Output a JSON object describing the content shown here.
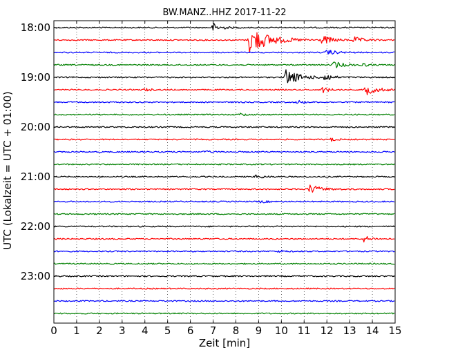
{
  "chart_data": {
    "type": "line",
    "title": "BW.MANZ..HHZ 2017-11-22",
    "xlabel": "Zeit  [min]",
    "ylabel": "UTC (Lokalzeit = UTC + 01:00)",
    "xlim": [
      0,
      15
    ],
    "x_ticks": [
      "0",
      "1",
      "2",
      "3",
      "4",
      "5",
      "6",
      "7",
      "8",
      "9",
      "10",
      "11",
      "12",
      "13",
      "14",
      "15"
    ],
    "y_ticks": [
      "18:00",
      "19:00",
      "20:00",
      "21:00",
      "22:00",
      "23:00"
    ],
    "grid": true,
    "trace_colors": [
      "#000000",
      "#ff0000",
      "#0000ff",
      "#008000"
    ],
    "rows": [
      {
        "start": "18:00",
        "events": [
          {
            "t": 7.0,
            "amp": 0.45,
            "dur": 0.7
          }
        ]
      },
      {
        "start": "18:15",
        "events": [
          {
            "t": 8.6,
            "amp": 1.4,
            "dur": 1.8
          },
          {
            "t": 11.8,
            "amp": 0.45,
            "dur": 0.9
          },
          {
            "t": 13.2,
            "amp": 0.3,
            "dur": 0.8
          }
        ]
      },
      {
        "start": "18:30",
        "events": [
          {
            "t": 12.0,
            "amp": 0.28,
            "dur": 0.8
          }
        ]
      },
      {
        "start": "18:45",
        "events": [
          {
            "t": 12.3,
            "amp": 0.35,
            "dur": 0.9
          },
          {
            "t": 13.5,
            "amp": 0.2,
            "dur": 0.5
          }
        ]
      },
      {
        "start": "19:00",
        "events": [
          {
            "t": 10.2,
            "amp": 0.85,
            "dur": 1.2
          },
          {
            "t": 11.9,
            "amp": 0.45,
            "dur": 0.6
          }
        ]
      },
      {
        "start": "19:15",
        "events": [
          {
            "t": 4.0,
            "amp": 0.15,
            "dur": 0.6
          },
          {
            "t": 11.8,
            "amp": 0.3,
            "dur": 0.6
          },
          {
            "t": 13.7,
            "amp": 0.55,
            "dur": 1.0
          }
        ]
      },
      {
        "start": "19:30",
        "events": [
          {
            "t": 10.7,
            "amp": 0.22,
            "dur": 0.5
          }
        ]
      },
      {
        "start": "19:45",
        "events": [
          {
            "t": 8.2,
            "amp": 0.15,
            "dur": 0.5
          }
        ]
      },
      {
        "start": "20:00",
        "events": []
      },
      {
        "start": "20:15",
        "events": [
          {
            "t": 12.2,
            "amp": 0.15,
            "dur": 0.5
          }
        ]
      },
      {
        "start": "20:30",
        "events": [
          {
            "t": 6.6,
            "amp": 0.12,
            "dur": 0.5
          }
        ]
      },
      {
        "start": "20:45",
        "events": []
      },
      {
        "start": "21:00",
        "events": [
          {
            "t": 8.9,
            "amp": 0.25,
            "dur": 0.6
          }
        ]
      },
      {
        "start": "21:15",
        "events": [
          {
            "t": 11.2,
            "amp": 0.5,
            "dur": 1.0
          }
        ]
      },
      {
        "start": "21:30",
        "events": [
          {
            "t": 9.1,
            "amp": 0.12,
            "dur": 0.6
          }
        ]
      },
      {
        "start": "21:45",
        "events": []
      },
      {
        "start": "22:00",
        "events": []
      },
      {
        "start": "22:15",
        "events": [
          {
            "t": 13.6,
            "amp": 0.35,
            "dur": 0.6
          }
        ]
      },
      {
        "start": "22:30",
        "events": [
          {
            "t": 9.9,
            "amp": 0.12,
            "dur": 0.6
          }
        ]
      },
      {
        "start": "22:45",
        "events": []
      },
      {
        "start": "23:00",
        "events": []
      },
      {
        "start": "23:15",
        "events": []
      },
      {
        "start": "23:30",
        "events": []
      },
      {
        "start": "23:45",
        "events": []
      }
    ]
  }
}
